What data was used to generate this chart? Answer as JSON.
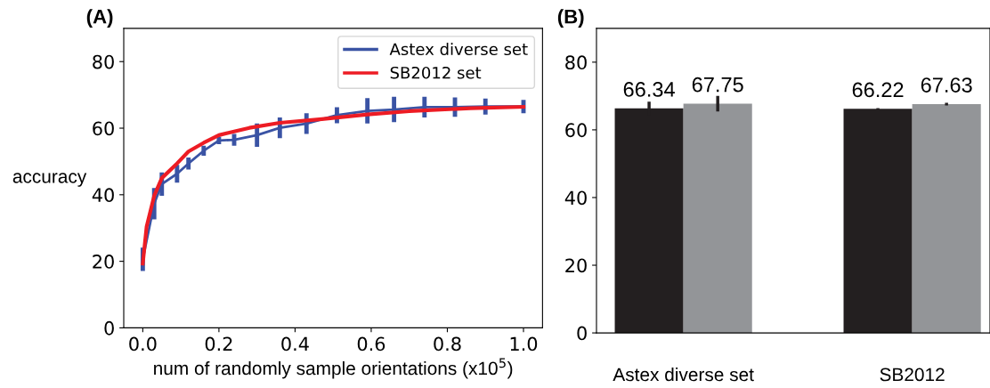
{
  "chart_data": [
    {
      "type": "line",
      "title": "(A)",
      "xlabel": "num of randomly sample orientations (x10$^{5}$)",
      "ylabel": "accuracy",
      "xlim": [
        -0.05,
        1.05
      ],
      "xticks": [
        {
          "value": 0,
          "label": "0.0"
        },
        0.2,
        0.4,
        0.6,
        0.8,
        {
          "value": 1,
          "label": "1.0"
        }
      ],
      "ylim": [
        0,
        90
      ],
      "yticks": [
        0,
        20,
        40,
        60,
        80
      ],
      "legend": "top right",
      "grid": false,
      "series": [
        {
          "name": "Astex diverse set",
          "color": "#3a53a4",
          "x": [
            0.0,
            0.03,
            0.05,
            0.09,
            0.12,
            0.16,
            0.2,
            0.24,
            0.3,
            0.36,
            0.43,
            0.51,
            0.59,
            0.66,
            0.74,
            0.82,
            0.9,
            1.0
          ],
          "values": [
            20.6,
            37.3,
            43.2,
            46.3,
            49.4,
            53.2,
            56.3,
            56.5,
            57.9,
            60.1,
            61.4,
            63.9,
            65.2,
            65.6,
            66.3,
            66.3,
            66.5,
            66.5
          ],
          "errors": [
            3.5,
            4.7,
            3.5,
            2.7,
            1.8,
            1.5,
            1.1,
            1.8,
            3.5,
            3.1,
            3.1,
            2.4,
            3.8,
            3.8,
            3.1,
            2.9,
            2.4,
            2.0
          ]
        },
        {
          "name": "SB2012 set",
          "color": "#ed1c24",
          "x": [
            0.0,
            0.01,
            0.03,
            0.05,
            0.09,
            0.12,
            0.16,
            0.2,
            0.28,
            0.36,
            0.47,
            0.59,
            0.7,
            0.86,
            1.0
          ],
          "values": [
            19.3,
            30.4,
            39.7,
            45.0,
            49.4,
            53.0,
            55.6,
            57.9,
            60.1,
            61.6,
            62.7,
            64.1,
            65.1,
            66.0,
            66.4
          ]
        }
      ]
    },
    {
      "type": "bar",
      "title": "(B)",
      "categories": [
        "Astex diverse set",
        "SB2012"
      ],
      "ylim": [
        0,
        90
      ],
      "yticks": [
        0,
        20,
        40,
        60,
        80
      ],
      "data_labels": true,
      "grid": false,
      "series": [
        {
          "color": "#231f20",
          "values": [
            66.34,
            66.22
          ],
          "errors": [
            2.0,
            0.2
          ]
        },
        {
          "color": "#939598",
          "values": [
            67.75,
            67.63
          ],
          "errors": [
            2.3,
            0.4
          ]
        }
      ]
    }
  ]
}
